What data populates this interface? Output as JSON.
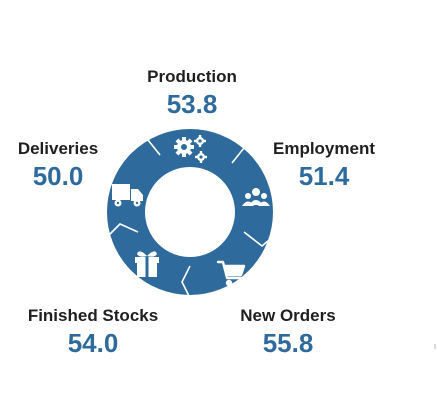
{
  "segments": [
    {
      "key": "production",
      "label": "Production",
      "value": "53.8",
      "icon": "gears-icon"
    },
    {
      "key": "employment",
      "label": "Employment",
      "value": "51.4",
      "icon": "people-icon"
    },
    {
      "key": "new_orders",
      "label": "New Orders",
      "value": "55.8",
      "icon": "shopping-cart-icon"
    },
    {
      "key": "finished_stocks",
      "label": "Finished Stocks",
      "value": "54.0",
      "icon": "gift-icon"
    },
    {
      "key": "deliveries",
      "label": "Deliveries",
      "value": "50.0",
      "icon": "truck-icon"
    }
  ],
  "colors": {
    "ring": "#2e6b9c",
    "value_text": "#2e6b9c",
    "label_text": "#1f1f1f",
    "icon": "#ffffff"
  }
}
